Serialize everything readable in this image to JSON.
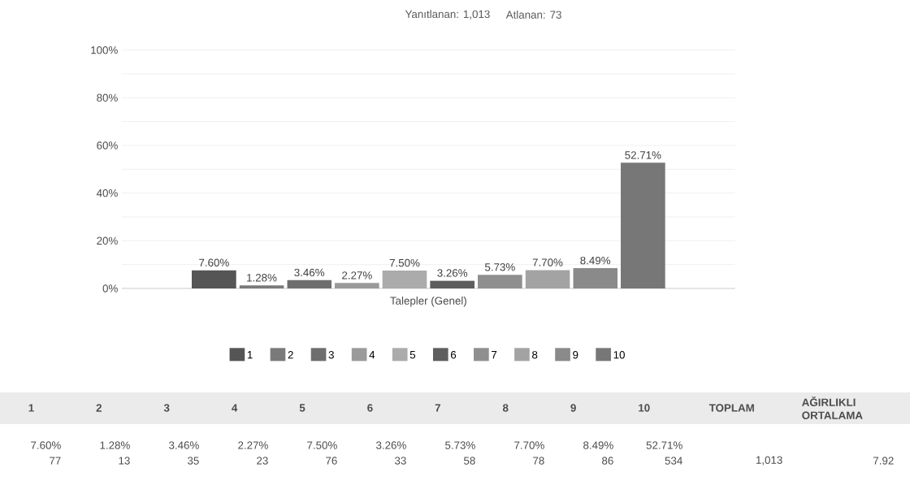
{
  "chart_data": {
    "type": "bar",
    "title": "Yanıtlanan: 1,013",
    "subtitle": "Atlanan: 73",
    "categories": [
      "Talepler (Genel)"
    ],
    "series": [
      {
        "name": "1",
        "color": "#555555",
        "values": [
          7.6
        ],
        "value_labels": [
          "7.60%"
        ]
      },
      {
        "name": "2",
        "color": "#7a7a7a",
        "values": [
          1.28
        ],
        "value_labels": [
          "1.28%"
        ]
      },
      {
        "name": "3",
        "color": "#6e6e6e",
        "values": [
          3.46
        ],
        "value_labels": [
          "3.46%"
        ]
      },
      {
        "name": "4",
        "color": "#9a9a9a",
        "values": [
          2.27
        ],
        "value_labels": [
          "2.27%"
        ]
      },
      {
        "name": "5",
        "color": "#ababab",
        "values": [
          7.5
        ],
        "value_labels": [
          "7.50%"
        ]
      },
      {
        "name": "6",
        "color": "#5e5e5e",
        "values": [
          3.26
        ],
        "value_labels": [
          "3.26%"
        ]
      },
      {
        "name": "7",
        "color": "#8f8f8f",
        "values": [
          5.73
        ],
        "value_labels": [
          "5.73%"
        ]
      },
      {
        "name": "8",
        "color": "#a3a3a3",
        "values": [
          7.7
        ],
        "value_labels": [
          "7.70%"
        ]
      },
      {
        "name": "9",
        "color": "#8a8a8a",
        "values": [
          8.49
        ],
        "value_labels": [
          "8.49%"
        ]
      },
      {
        "name": "10",
        "color": "#777777",
        "values": [
          52.71
        ],
        "value_labels": [
          "52.71%"
        ]
      }
    ],
    "ylim": [
      0,
      100
    ],
    "yticks": [
      {
        "value": 0,
        "label": "0%"
      },
      {
        "value": 20,
        "label": "20%"
      },
      {
        "value": 40,
        "label": "40%"
      },
      {
        "value": 60,
        "label": "60%"
      },
      {
        "value": 80,
        "label": "80%"
      },
      {
        "value": 100,
        "label": "100%"
      }
    ],
    "grid": "y",
    "legend": "bottom",
    "annotations": [
      "TOPLAM",
      "AĞIRLIKLI ORTALAMA",
      "77",
      "13",
      "35",
      "23",
      "76",
      "33",
      "58",
      "78",
      "86",
      "534",
      "1,013",
      "7.92"
    ]
  }
}
